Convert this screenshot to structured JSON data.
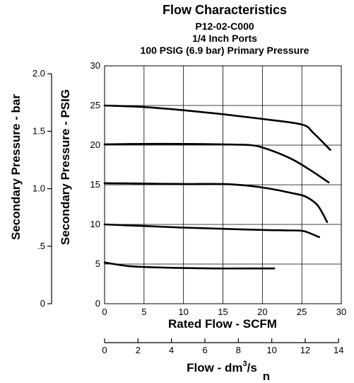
{
  "chart_data": {
    "type": "line",
    "title": "Flow Characteristics",
    "subtitles": [
      "P12-02-C000",
      "1/4 Inch Ports",
      "100 PSIG (6.9 bar) Primary Pressure"
    ],
    "xlabel": "Rated Flow - SCFM",
    "ylabel": "Secondary Pressure - PSIG",
    "xlim": [
      0,
      30
    ],
    "ylim": [
      0,
      30
    ],
    "xticks": [
      0,
      5,
      10,
      15,
      20,
      25,
      30
    ],
    "yticks": [
      0,
      5,
      10,
      15,
      20,
      25,
      30
    ],
    "grid": true,
    "secondary_x_axis": {
      "label": "Flow - dm",
      "superscript": "3",
      "suffix": "/s",
      "subscript": "n",
      "ticks": [
        "0",
        "2",
        "4",
        "6",
        "8",
        "10",
        "12",
        "14"
      ],
      "scfm_per_unit": 2.119
    },
    "secondary_y_axis": {
      "label": "Secondary Pressure - bar",
      "ticks": [
        "0",
        ".5",
        "1.0",
        "1.5",
        "2.0"
      ],
      "psig_per_unit": 14.5
    },
    "series": [
      {
        "x": [
          0,
          5,
          10,
          15,
          20,
          25,
          26.5,
          28.6
        ],
        "y": [
          25,
          24.8,
          24.4,
          23.9,
          23.3,
          22.6,
          21.5,
          19.4
        ]
      },
      {
        "x": [
          0,
          5,
          10,
          15,
          18.5,
          20,
          22,
          24,
          26,
          28.4
        ],
        "y": [
          20.1,
          20.15,
          20.15,
          20.1,
          20.0,
          19.7,
          19.0,
          18.1,
          16.9,
          15.3
        ]
      },
      {
        "x": [
          0,
          5,
          10,
          15,
          18,
          21,
          24,
          25.5,
          27,
          28.2
        ],
        "y": [
          15.2,
          15.15,
          15.1,
          15.1,
          14.9,
          14.5,
          13.9,
          13.5,
          12.4,
          10.3
        ]
      },
      {
        "x": [
          0,
          5,
          10,
          15,
          20,
          23,
          25,
          26,
          27.2
        ],
        "y": [
          10,
          9.8,
          9.6,
          9.45,
          9.3,
          9.25,
          9.2,
          8.9,
          8.4
        ]
      },
      {
        "x": [
          0,
          3,
          6,
          10,
          14,
          18,
          21.5
        ],
        "y": [
          5.2,
          4.75,
          4.6,
          4.5,
          4.45,
          4.45,
          4.45
        ]
      }
    ]
  }
}
